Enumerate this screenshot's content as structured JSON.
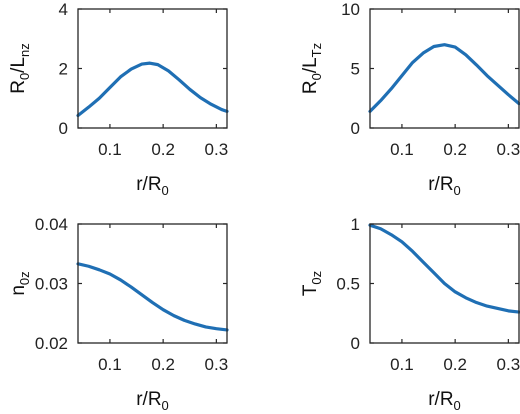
{
  "colors": {
    "series": "#1f6fb4",
    "axis": "#262626"
  },
  "chart_data": [
    {
      "type": "line",
      "xlabel": {
        "main": "r/R",
        "sub": "0"
      },
      "ylabel": {
        "main": "R",
        "sub1": "0",
        "mid": "/L",
        "sub2": "nz"
      },
      "xlim": [
        0.04,
        0.32
      ],
      "ylim": [
        0,
        4
      ],
      "xticks": [
        0.1,
        0.2,
        0.3
      ],
      "xtick_labels": [
        "0.1",
        "0.2",
        "0.3"
      ],
      "yticks": [
        0,
        2,
        4
      ],
      "ytick_labels": [
        "0",
        "2",
        "4"
      ],
      "grid": false,
      "series": [
        {
          "x": [
            0.04,
            0.06,
            0.08,
            0.1,
            0.12,
            0.14,
            0.16,
            0.175,
            0.19,
            0.21,
            0.23,
            0.25,
            0.27,
            0.29,
            0.31,
            0.32
          ],
          "y": [
            0.42,
            0.7,
            1.0,
            1.36,
            1.72,
            1.98,
            2.15,
            2.18,
            2.13,
            1.92,
            1.62,
            1.3,
            1.02,
            0.8,
            0.62,
            0.56
          ]
        }
      ]
    },
    {
      "type": "line",
      "xlabel": {
        "main": "r/R",
        "sub": "0"
      },
      "ylabel": {
        "main": "R",
        "sub1": "0",
        "mid": "/L",
        "sub2": "Tz"
      },
      "xlim": [
        0.04,
        0.32
      ],
      "ylim": [
        0,
        10
      ],
      "xticks": [
        0.1,
        0.2,
        0.3
      ],
      "xtick_labels": [
        "0.1",
        "0.2",
        "0.3"
      ],
      "yticks": [
        0,
        5,
        10
      ],
      "ytick_labels": [
        "0",
        "5",
        "10"
      ],
      "grid": false,
      "series": [
        {
          "x": [
            0.04,
            0.06,
            0.08,
            0.1,
            0.12,
            0.14,
            0.16,
            0.18,
            0.2,
            0.22,
            0.24,
            0.26,
            0.28,
            0.3,
            0.32
          ],
          "y": [
            1.4,
            2.3,
            3.3,
            4.4,
            5.5,
            6.3,
            6.85,
            7.0,
            6.8,
            6.15,
            5.3,
            4.4,
            3.6,
            2.8,
            2.05
          ]
        }
      ]
    },
    {
      "type": "line",
      "xlabel": {
        "main": "r/R",
        "sub": "0"
      },
      "ylabel": {
        "main": "n",
        "sub1": "0z",
        "mid": "",
        "sub2": ""
      },
      "xlim": [
        0.04,
        0.32
      ],
      "ylim": [
        0.02,
        0.04
      ],
      "xticks": [
        0.1,
        0.2,
        0.3
      ],
      "xtick_labels": [
        "0.1",
        "0.2",
        "0.3"
      ],
      "yticks": [
        0.02,
        0.03,
        0.04
      ],
      "ytick_labels": [
        "0.02",
        "0.03",
        "0.04"
      ],
      "grid": false,
      "series": [
        {
          "x": [
            0.04,
            0.06,
            0.08,
            0.1,
            0.12,
            0.14,
            0.16,
            0.18,
            0.2,
            0.22,
            0.24,
            0.26,
            0.28,
            0.3,
            0.32
          ],
          "y": [
            0.0333,
            0.0329,
            0.0323,
            0.0316,
            0.0306,
            0.0294,
            0.0281,
            0.0268,
            0.0256,
            0.0246,
            0.0238,
            0.0232,
            0.0227,
            0.0224,
            0.0222
          ]
        }
      ]
    },
    {
      "type": "line",
      "xlabel": {
        "main": "r/R",
        "sub": "0"
      },
      "ylabel": {
        "main": "T",
        "sub1": "0z",
        "mid": "",
        "sub2": ""
      },
      "xlim": [
        0.04,
        0.32
      ],
      "ylim": [
        0,
        1
      ],
      "xticks": [
        0.1,
        0.2,
        0.3
      ],
      "xtick_labels": [
        "0.1",
        "0.2",
        "0.3"
      ],
      "yticks": [
        0,
        0.5,
        1
      ],
      "ytick_labels": [
        "0",
        "0.5",
        "1"
      ],
      "grid": false,
      "series": [
        {
          "x": [
            0.04,
            0.06,
            0.08,
            0.1,
            0.12,
            0.14,
            0.16,
            0.18,
            0.2,
            0.22,
            0.24,
            0.26,
            0.28,
            0.3,
            0.32
          ],
          "y": [
            0.99,
            0.96,
            0.91,
            0.85,
            0.77,
            0.68,
            0.59,
            0.5,
            0.43,
            0.38,
            0.34,
            0.31,
            0.29,
            0.27,
            0.26
          ]
        }
      ]
    }
  ]
}
